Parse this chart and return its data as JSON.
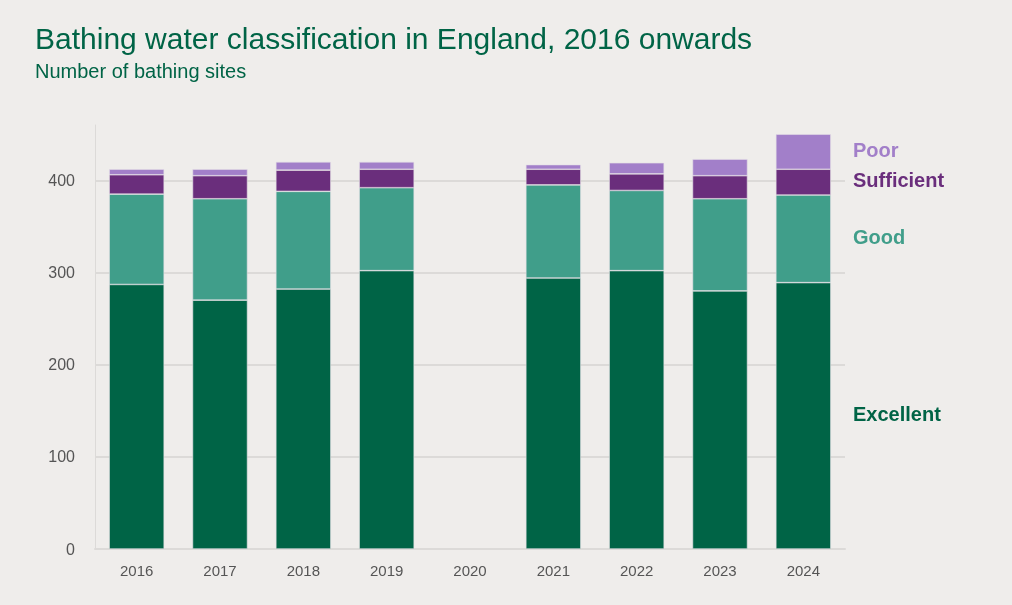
{
  "chart_data": {
    "type": "bar",
    "title": "Bathing water classification in England, 2016 onwards",
    "subtitle": "Number of bathing sites",
    "categories": [
      "2016",
      "2017",
      "2018",
      "2019",
      "2020",
      "2021",
      "2022",
      "2023",
      "2024"
    ],
    "stacked": true,
    "grid": "y",
    "legend": "right",
    "ylim": [
      0,
      460
    ],
    "yticks": [
      0,
      100,
      200,
      300,
      400
    ],
    "series": [
      {
        "name": "Excellent",
        "color": "#006446",
        "values": [
          287,
          270,
          282,
          302,
          null,
          294,
          302,
          280,
          289
        ]
      },
      {
        "name": "Good",
        "color": "#409e8a",
        "values": [
          98,
          110,
          106,
          90,
          null,
          101,
          87,
          100,
          95
        ]
      },
      {
        "name": "Sufficient",
        "color": "#6a2e7c",
        "values": [
          21,
          25,
          23,
          20,
          null,
          17,
          18,
          25,
          28
        ]
      },
      {
        "name": "Poor",
        "color": "#a27fc9",
        "values": [
          6,
          7,
          9,
          8,
          null,
          5,
          12,
          18,
          38
        ]
      }
    ]
  }
}
